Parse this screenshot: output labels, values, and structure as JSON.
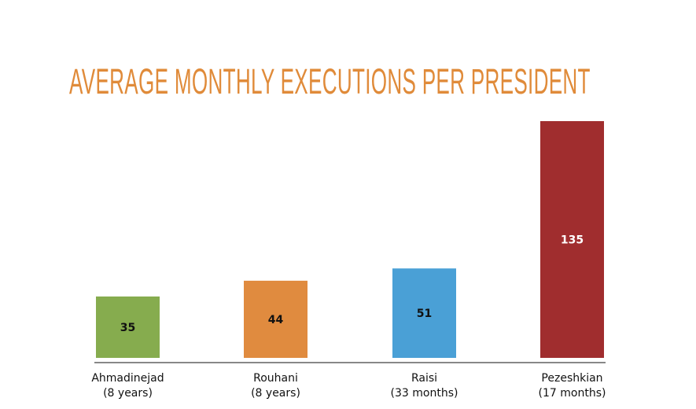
{
  "chart_data": {
    "type": "bar",
    "title": "AVERAGE MONTHLY EXECUTIONS PER PRESIDENT",
    "categories": [
      [
        "Ahmadinejad",
        "(8 years)"
      ],
      [
        "Rouhani",
        "(8 years)"
      ],
      [
        "Raisi",
        "(33 months)"
      ],
      [
        "Pezeshkian",
        "(17 months)"
      ]
    ],
    "values": [
      35,
      44,
      51,
      135
    ],
    "colors": [
      "#86AC4E",
      "#E08B3F",
      "#4AA0D6",
      "#A02D2E"
    ],
    "label_colors": [
      "#111111",
      "#111111",
      "#111111",
      "#ffffff"
    ],
    "grid": false,
    "ylim": [
      0,
      135
    ]
  }
}
